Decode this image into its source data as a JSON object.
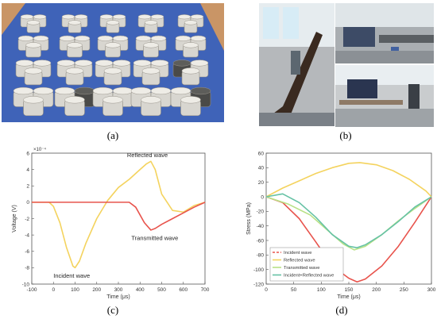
{
  "captions": {
    "a": "(a)",
    "b": "(b)",
    "c": "(c)",
    "d": "(d)"
  },
  "colors": {
    "red": "#e8534c",
    "yellow": "#f4d35e",
    "green": "#66c2a5",
    "blue": "#6baed6",
    "mat": "#3f63b8",
    "table": "#c99566"
  },
  "chart_data": [
    {
      "type": "line",
      "panel": "c",
      "title": "",
      "xlabel": "Time (μs)",
      "ylabel": "Voltage (V)",
      "y_exponent": "×10⁻⁴",
      "xlim": [
        -100,
        700
      ],
      "ylim": [
        -10,
        6
      ],
      "xticks": [
        -100,
        0,
        100,
        200,
        300,
        400,
        500,
        600,
        700
      ],
      "yticks": [
        -10,
        -8,
        -6,
        -4,
        -2,
        0,
        2,
        4,
        6
      ],
      "grid": false,
      "annotations": [
        "Reflected wave",
        "Transmitted wave",
        "Incident wave"
      ],
      "series": [
        {
          "color": "#f4d35e",
          "x": [
            -100,
            -20,
            0,
            30,
            60,
            90,
            100,
            120,
            150,
            200,
            250,
            300,
            350,
            400,
            430,
            450,
            470,
            500,
            550,
            600,
            650,
            700
          ],
          "y": [
            0,
            0,
            -0.5,
            -2.5,
            -5.5,
            -7.8,
            -8.0,
            -7.2,
            -5,
            -2,
            0.2,
            1.8,
            2.8,
            4.0,
            4.7,
            5.0,
            4.0,
            1.0,
            -1.0,
            -1.2,
            -0.4,
            0
          ]
        },
        {
          "color": "#e8534c",
          "x": [
            -100,
            0,
            100,
            200,
            300,
            350,
            380,
            420,
            450,
            470,
            500,
            550,
            600,
            650,
            700
          ],
          "y": [
            0,
            0,
            0,
            0,
            0,
            0,
            -0.6,
            -2.5,
            -3.4,
            -3.2,
            -2.7,
            -2.0,
            -1.3,
            -0.6,
            0
          ]
        }
      ]
    },
    {
      "type": "line",
      "panel": "d",
      "title": "",
      "xlabel": "Time (μs)",
      "ylabel": "Stress (MPa)",
      "xlim": [
        0,
        300
      ],
      "ylim": [
        -120,
        60
      ],
      "xticks": [
        0,
        50,
        100,
        150,
        200,
        250,
        300
      ],
      "yticks": [
        -120,
        -100,
        -80,
        -60,
        -40,
        -20,
        0,
        20,
        40,
        60
      ],
      "grid": false,
      "legend_position": "bottom-left",
      "series": [
        {
          "name": "Incident wave",
          "color": "#e8534c",
          "dash": true,
          "x": [
            0,
            30,
            60,
            90,
            120,
            150,
            165,
            180,
            210,
            240,
            270,
            300
          ],
          "y": [
            0,
            -8,
            -30,
            -62,
            -95,
            -112,
            -117,
            -113,
            -95,
            -68,
            -35,
            0
          ]
        },
        {
          "name": "Reflected wave",
          "color": "#f4d35e",
          "x": [
            0,
            30,
            60,
            90,
            120,
            150,
            170,
            200,
            230,
            260,
            290,
            300
          ],
          "y": [
            0,
            12,
            22,
            32,
            40,
            46,
            47,
            44,
            36,
            24,
            8,
            0
          ]
        },
        {
          "name": "Transmitted wave",
          "color": "#b8e186",
          "x": [
            0,
            40,
            80,
            110,
            140,
            160,
            180,
            210,
            240,
            270,
            300
          ],
          "y": [
            0,
            -10,
            -25,
            -45,
            -65,
            -73,
            -68,
            -52,
            -33,
            -16,
            0
          ]
        },
        {
          "name": "Incident+Reflected wave",
          "color": "#66c2a5",
          "x": [
            0,
            30,
            60,
            90,
            120,
            150,
            165,
            180,
            210,
            240,
            270,
            300
          ],
          "y": [
            0,
            4,
            -8,
            -28,
            -52,
            -68,
            -70,
            -66,
            -52,
            -34,
            -14,
            0
          ]
        }
      ]
    }
  ]
}
